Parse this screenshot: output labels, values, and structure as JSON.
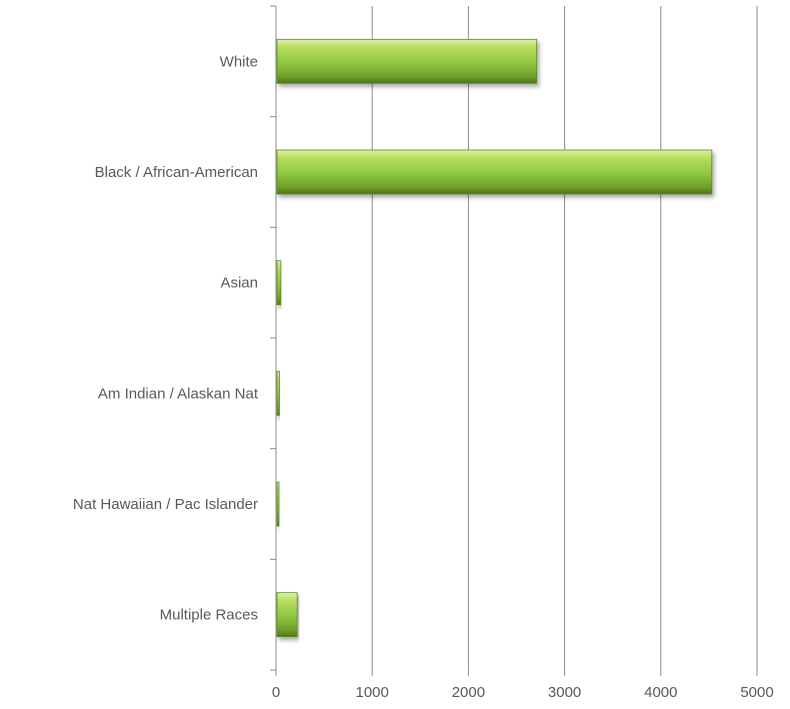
{
  "chart_data": {
    "type": "bar",
    "orientation": "horizontal",
    "title": "",
    "xlabel": "",
    "ylabel": "",
    "categories": [
      "White",
      "Black / African-American",
      "Asian",
      "Am Indian / Alaskan Nat",
      "Nat Hawaiian / Pac Islander",
      "Multiple Races"
    ],
    "values": [
      2700,
      4520,
      40,
      25,
      10,
      210
    ],
    "xlim": [
      0,
      5000
    ],
    "xticks": [
      0,
      1000,
      2000,
      3000,
      4000,
      5000
    ],
    "xtick_labels": [
      "0",
      "1000",
      "2000",
      "3000",
      "4000",
      "5000"
    ],
    "grid": "vertical",
    "legend": "none",
    "bar_color": "#8dc63f"
  }
}
